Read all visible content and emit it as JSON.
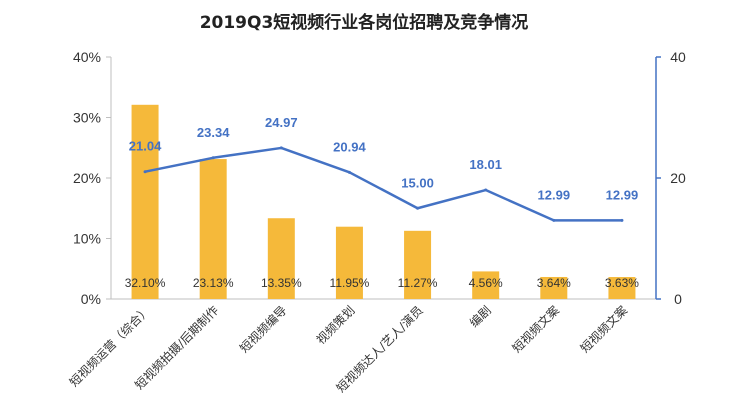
{
  "chart_data": {
    "type": "bar",
    "title": "2019Q3短视频行业各岗位招聘及竞争情况",
    "categories": [
      "短视频运营（综合）",
      "短视频拍摄/后期制作",
      "短视频编导",
      "视频策划",
      "短视频达人/艺人/演员",
      "编剧",
      "短视频文案",
      "短视频文案"
    ],
    "series": [
      {
        "type": "bar",
        "axis": "left",
        "values": [
          32.1,
          23.13,
          13.35,
          11.95,
          11.27,
          4.56,
          3.64,
          3.63
        ],
        "labels": [
          "32.10%",
          "23.13%",
          "13.35%",
          "11.95%",
          "11.27%",
          "4.56%",
          "3.64%",
          "3.63%"
        ]
      },
      {
        "type": "line",
        "axis": "right",
        "values": [
          21.04,
          23.34,
          24.97,
          20.94,
          15.0,
          18.01,
          12.99,
          12.99
        ],
        "labels": [
          "21.04",
          "23.34",
          "24.97",
          "20.94",
          "15.00",
          "18.01",
          "12.99",
          "12.99"
        ]
      }
    ],
    "y_left": {
      "range": [
        0,
        40
      ],
      "ticks": [
        "0%",
        "10%",
        "20%",
        "30%",
        "40%"
      ]
    },
    "y_right": {
      "range": [
        0,
        40
      ],
      "ticks": [
        "0",
        "20",
        "40"
      ]
    },
    "grid": false,
    "colors": {
      "bar": "#F5B93A",
      "line": "#4472C4",
      "axis_right": "#4472C4",
      "axis_left": "#BFBFBF",
      "line_label": "#4472C4"
    }
  }
}
